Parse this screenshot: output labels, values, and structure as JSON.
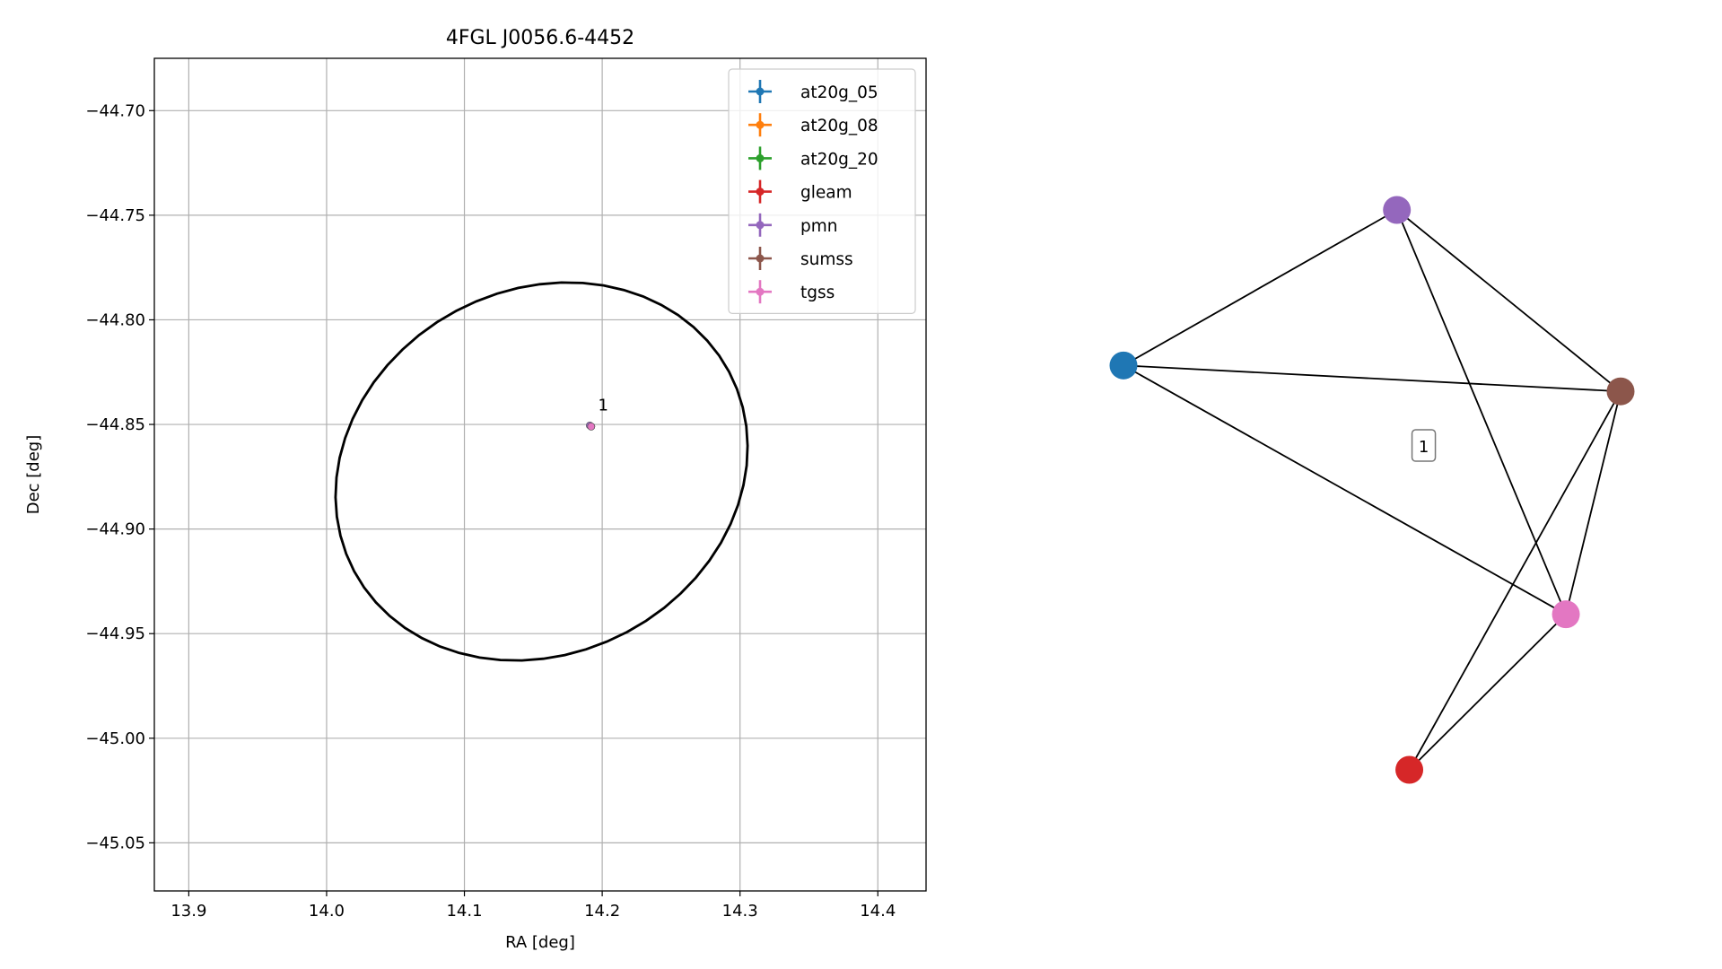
{
  "chart_data": [
    {
      "type": "scatter",
      "title": "4FGL J0056.6-4452",
      "xlabel": "RA [deg]",
      "ylabel": "Dec [deg]",
      "xlim": [
        13.875,
        14.435
      ],
      "ylim": [
        -45.073,
        -44.675
      ],
      "xticks": [
        13.9,
        14.0,
        14.1,
        14.2,
        14.3,
        14.4
      ],
      "xtick_labels": [
        "13.9",
        "14.0",
        "14.1",
        "14.2",
        "14.3",
        "14.4"
      ],
      "yticks": [
        -44.7,
        -44.75,
        -44.8,
        -44.85,
        -44.9,
        -44.95,
        -45.0,
        -45.05
      ],
      "ytick_labels": [
        "−44.70",
        "−44.75",
        "−44.80",
        "−44.85",
        "−44.90",
        "−44.95",
        "−45.00",
        "−45.05"
      ],
      "grid": true,
      "legend_position": "top-right",
      "series": [
        {
          "name": "at20g_05",
          "color": "#1f77b4",
          "x": [
            14.192
          ],
          "y": [
            -44.851
          ]
        },
        {
          "name": "at20g_08",
          "color": "#ff7f0e",
          "x": [
            14.192
          ],
          "y": [
            -44.851
          ]
        },
        {
          "name": "at20g_20",
          "color": "#2ca02c",
          "x": [
            14.192
          ],
          "y": [
            -44.851
          ]
        },
        {
          "name": "gleam",
          "color": "#d62728",
          "x": [
            14.192
          ],
          "y": [
            -44.851
          ]
        },
        {
          "name": "pmn",
          "color": "#9467bd",
          "x": [
            14.191
          ],
          "y": [
            -44.8505
          ]
        },
        {
          "name": "sumss",
          "color": "#8c564b",
          "x": [
            14.192
          ],
          "y": [
            -44.851
          ]
        },
        {
          "name": "tgss",
          "color": "#e377c2",
          "x": [
            14.192
          ],
          "y": [
            -44.851
          ]
        }
      ],
      "ellipse": {
        "color": "#000000",
        "center": [
          14.156,
          -44.8725
        ],
        "semi_major": 0.132,
        "semi_minor": 0.1015,
        "angle_deg": 62
      },
      "annotations": [
        {
          "text": "1",
          "x": 14.197,
          "y": -44.845
        }
      ]
    },
    {
      "type": "network",
      "cluster_label": "1",
      "nodes": [
        {
          "id": "at20g_05",
          "color": "#1f77b4",
          "x": 0.0,
          "y": 0.7
        },
        {
          "id": "pmn",
          "color": "#9467bd",
          "x": 0.55,
          "y": 1.0
        },
        {
          "id": "sumss",
          "color": "#8c564b",
          "x": 1.0,
          "y": 0.65
        },
        {
          "id": "tgss",
          "color": "#e377c2",
          "x": 0.89,
          "y": 0.22
        },
        {
          "id": "gleam",
          "color": "#d62728",
          "x": 0.575,
          "y": -0.08
        }
      ],
      "edges": [
        [
          "at20g_05",
          "pmn"
        ],
        [
          "at20g_05",
          "sumss"
        ],
        [
          "at20g_05",
          "tgss"
        ],
        [
          "pmn",
          "sumss"
        ],
        [
          "pmn",
          "tgss"
        ],
        [
          "sumss",
          "tgss"
        ],
        [
          "sumss",
          "gleam"
        ],
        [
          "tgss",
          "gleam"
        ]
      ]
    }
  ]
}
